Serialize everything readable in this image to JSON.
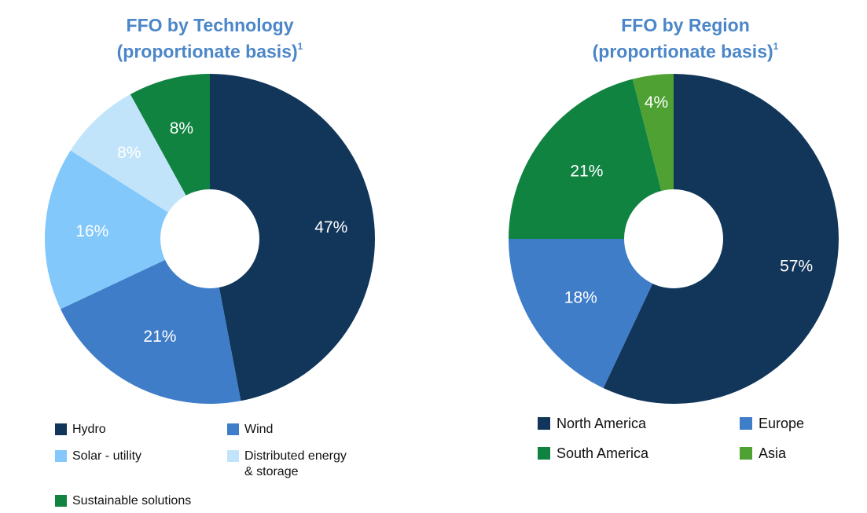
{
  "chart_data": [
    {
      "type": "pie",
      "variant": "donut",
      "title_line1": "FFO by Technology",
      "title_line2": "(proportionate basis)",
      "title_footnote": "1",
      "slices": [
        {
          "label": "Hydro",
          "value": 47,
          "display": "47%",
          "color": "#12365a",
          "label_color": "#ffffff"
        },
        {
          "label": "Wind",
          "value": 21,
          "display": "21%",
          "color": "#3f7dc9",
          "label_color": "#ffffff"
        },
        {
          "label": "Solar - utility",
          "value": 16,
          "display": "16%",
          "color": "#82c8fb",
          "label_color": "#ffffff"
        },
        {
          "label": "Distributed energy & storage",
          "value": 8,
          "display": "8%",
          "color": "#c2e4fb",
          "label_color": "#ffffff"
        },
        {
          "label": "Sustainable solutions",
          "value": 8,
          "display": "8%",
          "color": "#108341",
          "label_color": "#ffffff"
        }
      ],
      "legend": [
        {
          "label": "Hydro",
          "color": "#12365a"
        },
        {
          "label": "Wind",
          "color": "#3f7dc9"
        },
        {
          "label": "Solar - utility",
          "color": "#82c8fb"
        },
        {
          "label": "Distributed energy",
          "label2": "& storage",
          "color": "#c2e4fb"
        },
        {
          "label": "Sustainable solutions",
          "color": "#108341"
        }
      ]
    },
    {
      "type": "pie",
      "variant": "donut",
      "title_line1": "FFO by Region",
      "title_line2": "(proportionate basis)",
      "title_footnote": "1",
      "slices": [
        {
          "label": "North America",
          "value": 57,
          "display": "57%",
          "color": "#12365a",
          "label_color": "#ffffff"
        },
        {
          "label": "Europe",
          "value": 18,
          "display": "18%",
          "color": "#3f7dc9",
          "label_color": "#ffffff"
        },
        {
          "label": "South America",
          "value": 21,
          "display": "21%",
          "color": "#108341",
          "label_color": "#ffffff"
        },
        {
          "label": "Asia",
          "value": 4,
          "display": "4%",
          "color": "#4ea132",
          "label_color": "#ffffff"
        }
      ],
      "legend": [
        {
          "label": "North  America",
          "color": "#12365a"
        },
        {
          "label": "Europe",
          "color": "#3f7dc9"
        },
        {
          "label": "South America",
          "color": "#108341"
        },
        {
          "label": "Asia",
          "color": "#4ea132"
        }
      ]
    }
  ]
}
